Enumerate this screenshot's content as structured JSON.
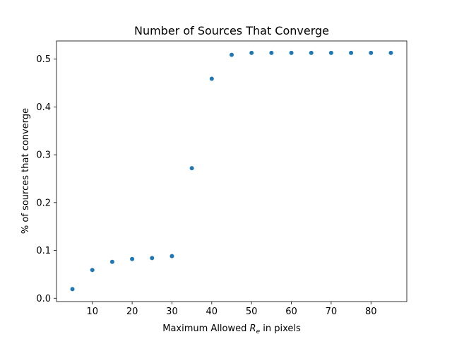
{
  "chart_data": {
    "type": "scatter",
    "title": "Number of Sources That Converge",
    "xlabel_parts": {
      "prefix": "Maximum Allowed ",
      "symbol": "R",
      "subscript": "e",
      "suffix": " in pixels"
    },
    "ylabel": "% of sources that converge",
    "xlim": [
      1.0,
      89.0
    ],
    "ylim": [
      -0.007,
      0.538
    ],
    "xticks": [
      10,
      20,
      30,
      40,
      50,
      60,
      70,
      80
    ],
    "yticks": [
      0.0,
      0.1,
      0.2,
      0.3,
      0.4,
      0.5
    ],
    "ytick_labels": [
      "0.0",
      "0.1",
      "0.2",
      "0.3",
      "0.4",
      "0.5"
    ],
    "grid": false,
    "legend": "none",
    "marker_color": "#1f77b4",
    "series": [
      {
        "x": [
          5,
          10,
          15,
          20,
          25,
          30,
          35,
          40,
          45,
          50,
          55,
          60,
          65,
          70,
          75,
          80,
          85
        ],
        "y": [
          0.019,
          0.059,
          0.076,
          0.082,
          0.084,
          0.088,
          0.272,
          0.459,
          0.509,
          0.513,
          0.513,
          0.513,
          0.513,
          0.513,
          0.513,
          0.513,
          0.513
        ]
      }
    ]
  }
}
